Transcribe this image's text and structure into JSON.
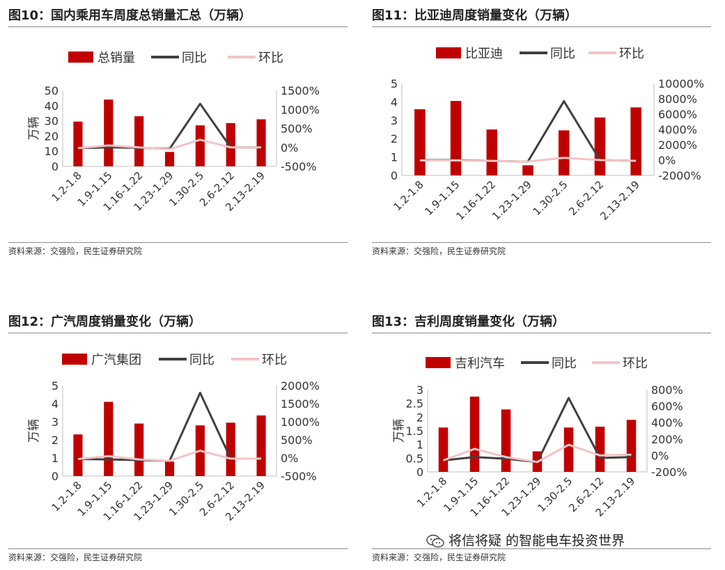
{
  "source_text": "资料来源：交强险，民生证券研究院",
  "watermark": {
    "text": "将信将疑 的智能电车投资世界",
    "icon": "wechat-icon"
  },
  "colors": {
    "bar": "#c00000",
    "yoy": "#404040",
    "mom": "#f2c4c4"
  },
  "panels": [
    {
      "title": "图10：国内乘用车周度总销量汇总（万辆）",
      "legend": [
        "总销量",
        "同比",
        "环比"
      ],
      "chart_data": {
        "type": "bar+line",
        "categories": [
          "1.2-1.8",
          "1.9-1.15",
          "1.16-1.22",
          "1.23-1.29",
          "1.30-2.5",
          "2.6-2.12",
          "2.13-2.19"
        ],
        "series": [
          {
            "name": "总销量",
            "type": "bar",
            "axis": "left",
            "values": [
              29.5,
              44,
              33,
              9.5,
              27,
              28.5,
              31
            ]
          },
          {
            "name": "同比",
            "type": "line",
            "axis": "right",
            "values": [
              -20,
              0,
              -10,
              -40,
              1150,
              0,
              0
            ]
          },
          {
            "name": "环比",
            "type": "line",
            "axis": "right",
            "values": [
              -20,
              50,
              0,
              -50,
              200,
              0,
              0
            ]
          }
        ],
        "ylabel": "万辆",
        "ylim": [
          0,
          50
        ],
        "yticks": [
          "0",
          "10",
          "20",
          "30",
          "40",
          "50"
        ],
        "y2lim": [
          -500,
          1500
        ],
        "y2ticks": [
          "-500%",
          "0%",
          "500%",
          "1000%",
          "1500%"
        ],
        "legend_position": "top",
        "grid": false
      }
    },
    {
      "title": "图11：比亚迪周度销量变化（万辆）",
      "legend": [
        "比亚迪",
        "同比",
        "环比"
      ],
      "chart_data": {
        "type": "bar+line",
        "categories": [
          "1.2-1.8",
          "1.9-1.15",
          "1.16-1.22",
          "1.23-1.29",
          "1.30-2.5",
          "2.6-2.12",
          "2.13-2.19"
        ],
        "series": [
          {
            "name": "比亚迪",
            "type": "bar",
            "axis": "left",
            "values": [
              3.6,
              4.05,
              2.5,
              0.55,
              2.45,
              3.15,
              3.7
            ]
          },
          {
            "name": "同比",
            "type": "line",
            "axis": "right",
            "values": [
              0,
              0,
              -100,
              -200,
              7700,
              0,
              -100
            ]
          },
          {
            "name": "环比",
            "type": "line",
            "axis": "right",
            "values": [
              -50,
              -50,
              -100,
              -200,
              300,
              0,
              -100
            ]
          }
        ],
        "ylabel": "",
        "ylim": [
          0,
          5
        ],
        "yticks": [
          "0",
          "1",
          "2",
          "3",
          "4",
          "5"
        ],
        "y2lim": [
          -2000,
          10000
        ],
        "y2ticks": [
          "-2000%",
          "0%",
          "2000%",
          "4000%",
          "6000%",
          "8000%",
          "10000%"
        ],
        "legend_position": "top",
        "grid": false
      }
    },
    {
      "title": "图12：广汽周度销量变化（万辆）",
      "legend": [
        "广汽集团",
        "同比",
        "环比"
      ],
      "chart_data": {
        "type": "bar+line",
        "categories": [
          "1.2-1.8",
          "1.9-1.15",
          "1.16-1.22",
          "1.23-1.29",
          "1.30-2.5",
          "2.6-2.12",
          "2.13-2.19"
        ],
        "series": [
          {
            "name": "广汽集团",
            "type": "bar",
            "axis": "left",
            "values": [
              2.3,
              4.1,
              2.9,
              0.8,
              2.8,
              2.95,
              3.35
            ]
          },
          {
            "name": "同比",
            "type": "line",
            "axis": "right",
            "values": [
              -30,
              -40,
              -60,
              -80,
              1800,
              -20,
              -20
            ]
          },
          {
            "name": "环比",
            "type": "line",
            "axis": "right",
            "values": [
              -30,
              50,
              -40,
              -80,
              200,
              -20,
              -20
            ]
          }
        ],
        "ylabel": "万辆",
        "ylim": [
          0,
          5
        ],
        "yticks": [
          "0",
          "1",
          "2",
          "3",
          "4",
          "5"
        ],
        "y2lim": [
          -500,
          2000
        ],
        "y2ticks": [
          "-500%",
          "0%",
          "500%",
          "1000%",
          "1500%",
          "2000%"
        ],
        "legend_position": "top",
        "grid": false
      }
    },
    {
      "title": "图13：吉利周度销量变化（万辆）",
      "legend": [
        "吉利汽车",
        "同比",
        "环比"
      ],
      "chart_data": {
        "type": "bar+line",
        "categories": [
          "1.2-1.8",
          "1.9-1.15",
          "1.16-1.22",
          "1.23-1.29",
          "1.30-2.5",
          "2.6-2.12",
          "2.13-2.19"
        ],
        "series": [
          {
            "name": "吉利汽车",
            "type": "bar",
            "axis": "left",
            "values": [
              1.62,
              2.75,
              2.28,
              0.75,
              1.62,
              1.65,
              1.9
            ]
          },
          {
            "name": "同比",
            "type": "line",
            "axis": "right",
            "values": [
              -60,
              -20,
              -40,
              -80,
              700,
              -30,
              -20
            ]
          },
          {
            "name": "环比",
            "type": "line",
            "axis": "right",
            "values": [
              -60,
              80,
              -20,
              -80,
              130,
              0,
              10
            ]
          }
        ],
        "ylabel": "万辆",
        "ylim": [
          0,
          3
        ],
        "yticks": [
          "0",
          "0.5",
          "1",
          "1.5",
          "2",
          "2.5",
          "3"
        ],
        "y2lim": [
          -200,
          800
        ],
        "y2ticks": [
          "-200%",
          "0%",
          "200%",
          "400%",
          "600%",
          "800%"
        ],
        "legend_position": "top",
        "grid": false
      }
    }
  ]
}
